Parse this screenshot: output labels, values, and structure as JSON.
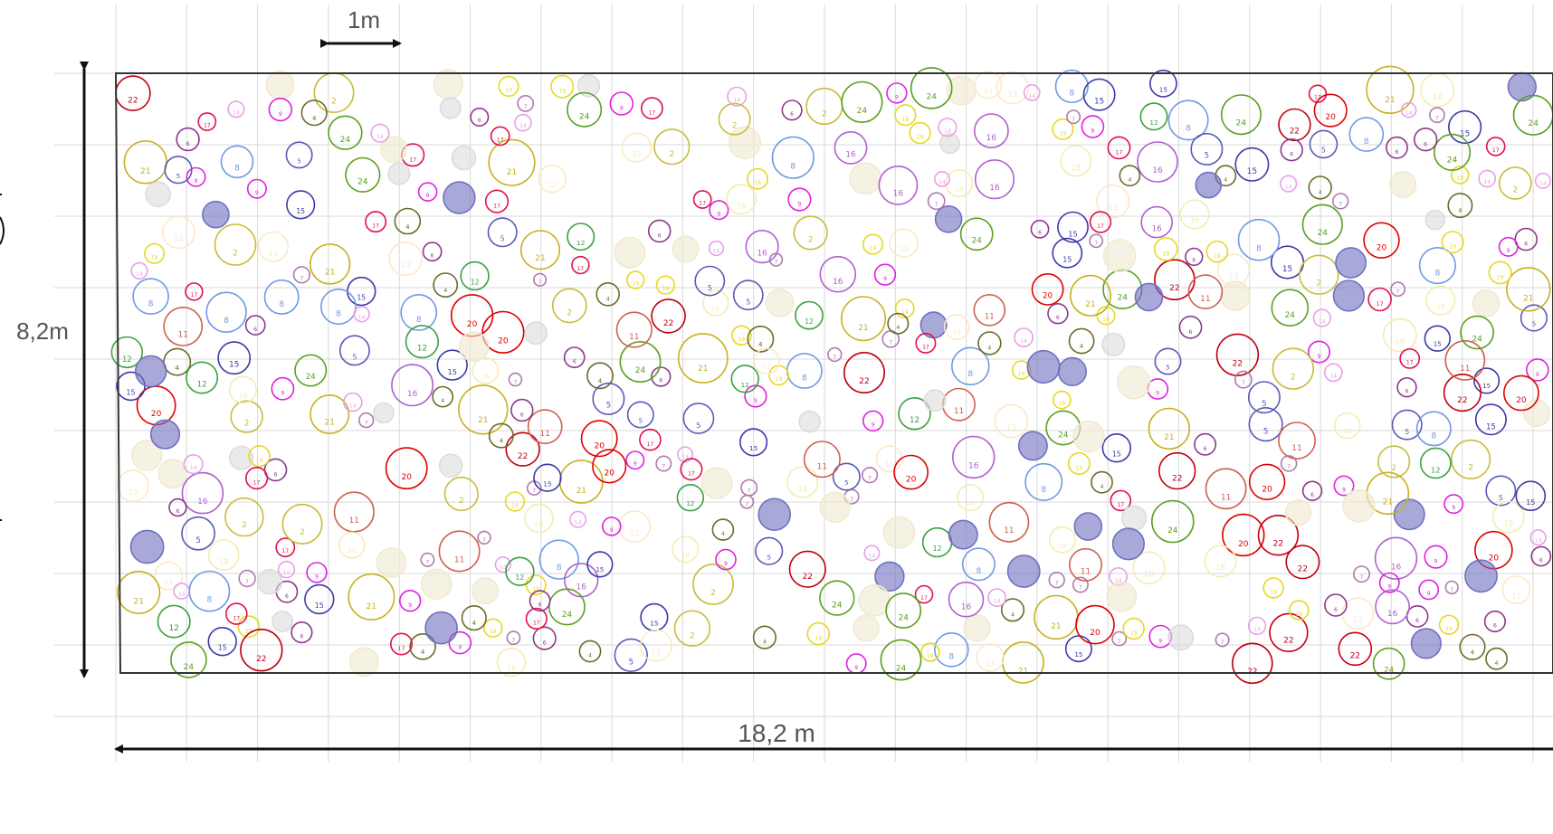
{
  "dimensions": {
    "scale_label": "1m",
    "height_label": "8,2m",
    "width_label": "18,2 m"
  },
  "colors": {
    "grid": "#d9d9d9",
    "outline": "#333333",
    "arrow": "#111111",
    "dim_text": "#555555"
  },
  "species": [
    {
      "id": "2",
      "color": "#c8bd3a",
      "filled": false
    },
    {
      "id": "4",
      "color": "#6b6b2a",
      "filled": false
    },
    {
      "id": "5",
      "color": "#5a5ab8",
      "filled": false
    },
    {
      "id": "6",
      "color": "#8a3a8a",
      "filled": false
    },
    {
      "id": "7",
      "color": "#b07ab0",
      "filled": false
    },
    {
      "id": "8",
      "color": "#6f9ae6",
      "filled": false
    },
    {
      "id": "9",
      "color": "#e020e0",
      "filled": false
    },
    {
      "id": "11",
      "color": "#d06050",
      "filled": false
    },
    {
      "id": "12",
      "color": "#3aa040",
      "filled": false
    },
    {
      "id": "14",
      "color": "#e8a0e8",
      "filled": false
    },
    {
      "id": "15",
      "color": "#3a3aa8",
      "filled": false
    },
    {
      "id": "16",
      "color": "#b060d0",
      "filled": false
    },
    {
      "id": "17",
      "color": "#e0104a",
      "filled": false
    },
    {
      "id": "19",
      "color": "#e8d820",
      "filled": false
    },
    {
      "id": "20",
      "color": "#e00000",
      "filled": false
    },
    {
      "id": "21",
      "color": "#c8b020",
      "filled": false
    },
    {
      "id": "22",
      "color": "#c00010",
      "filled": false
    },
    {
      "id": "24",
      "color": "#5aa020",
      "filled": false
    },
    {
      "id": "3",
      "color": "#7070c0",
      "filled": true
    },
    {
      "id": "1",
      "color": "#dcdcdc",
      "filled": true
    },
    {
      "id": "10",
      "color": "#f0ead0",
      "filled": true
    },
    {
      "id": "13",
      "color": "#fde8c8",
      "filled": false
    },
    {
      "id": "18",
      "color": "#f5ecb0",
      "filled": false
    }
  ]
}
